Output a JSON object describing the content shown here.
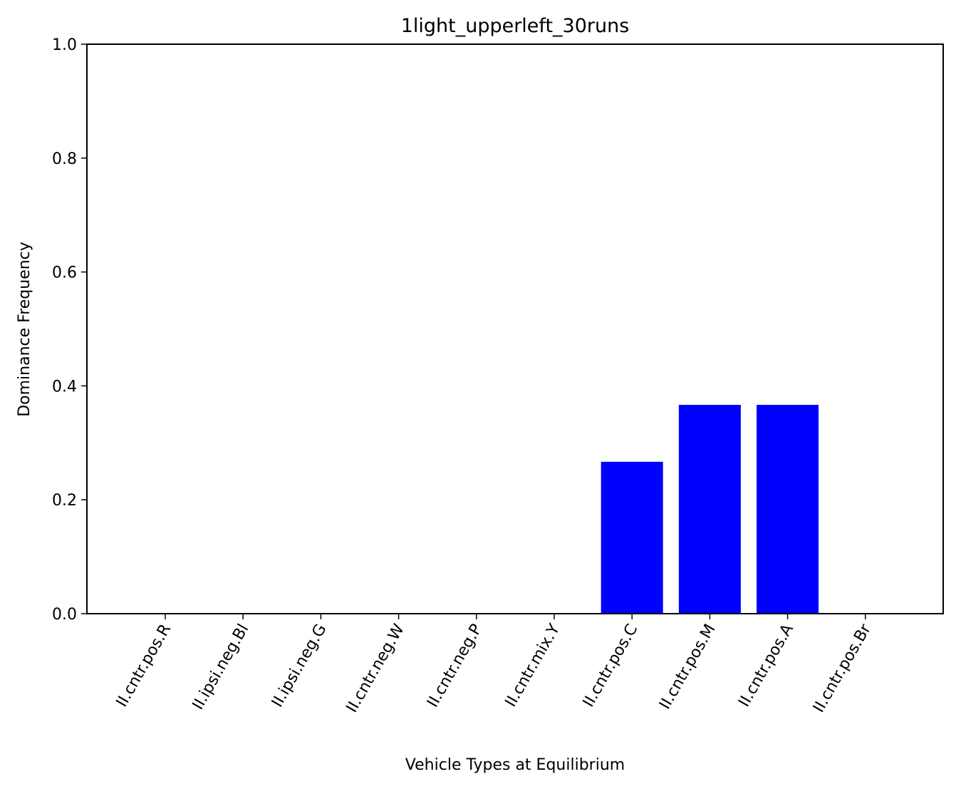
{
  "chart_data": {
    "type": "bar",
    "title": "1light_upperleft_30runs",
    "xlabel": "Vehicle Types at Equilibrium",
    "ylabel": "Dominance Frequency",
    "ylim": [
      0,
      1
    ],
    "yticks": [
      "0.0",
      "0.2",
      "0.4",
      "0.6",
      "0.8",
      "1.0"
    ],
    "categories": [
      "II.cntr.pos.R",
      "II.ipsi.neg.Bl",
      "II.ipsi.neg.G",
      "II.cntr.neg.W",
      "II.cntr.neg.P",
      "II.cntr.mix.Y",
      "II.cntr.pos.C",
      "II.cntr.pos.M",
      "II.cntr.pos.A",
      "II.cntr.pos.Br"
    ],
    "values": [
      0,
      0,
      0,
      0,
      0,
      0,
      0.2667,
      0.3667,
      0.3667,
      0
    ],
    "bar_color": "#0000ff",
    "grid": false
  }
}
